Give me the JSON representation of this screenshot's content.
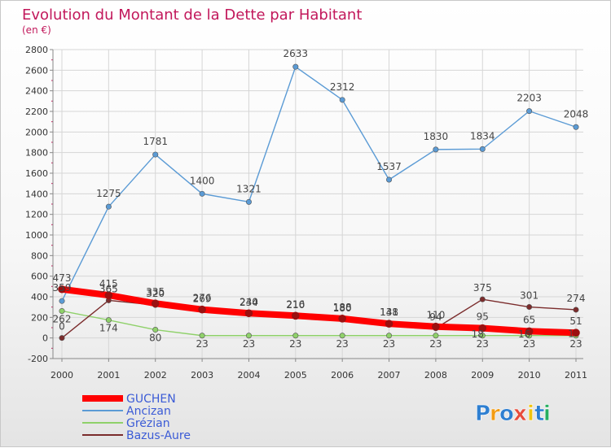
{
  "chart_data": {
    "type": "line",
    "title": "Evolution du Montant de la Dette par Habitant",
    "subtitle": "(en €)",
    "xlabel": "",
    "ylabel": "",
    "ylim": [
      -200,
      2800
    ],
    "yticks": [
      -200,
      0,
      200,
      400,
      600,
      800,
      1000,
      1200,
      1400,
      1600,
      1800,
      2000,
      2200,
      2400,
      2600,
      2800
    ],
    "categories": [
      "2000",
      "2001",
      "2002",
      "2003",
      "2004",
      "2005",
      "2006",
      "2007",
      "2008",
      "2009",
      "2010",
      "2011"
    ],
    "series": [
      {
        "name": "GUCHEN",
        "color": "#ff0000",
        "values": [
          473,
          415,
          335,
          276,
          240,
          216,
          188,
          138,
          110,
          95,
          65,
          51
        ],
        "labels": [
          "473",
          "415",
          "335",
          "276",
          "240",
          "216",
          "188",
          "138",
          "110",
          "95",
          "65",
          "51"
        ]
      },
      {
        "name": "Ancizan",
        "color": "#5b9bd5",
        "values": [
          359,
          1275,
          1781,
          1400,
          1321,
          2633,
          2312,
          1537,
          1830,
          1834,
          2203,
          2048
        ],
        "labels": [
          "359",
          "1275",
          "1781",
          "1400",
          "1321",
          "2633",
          "2312",
          "1537",
          "1830",
          "1834",
          "2203",
          "2048"
        ]
      },
      {
        "name": "Grézian",
        "color": "#8fd16a",
        "values": [
          262,
          174,
          80,
          23,
          23,
          23,
          23,
          23,
          23,
          23,
          23,
          23
        ],
        "labels": [
          "262",
          "174",
          "80",
          "23",
          "23",
          "23",
          "23",
          "23",
          "23",
          "23",
          "23",
          "23"
        ]
      },
      {
        "name": "Bazus-Aure",
        "color": "#7b2c2c",
        "values": [
          0,
          365,
          320,
          269,
          234,
          210,
          180,
          141,
          94,
          375,
          301,
          274
        ],
        "labels": [
          "0",
          "365",
          "320",
          "269",
          "234",
          "210",
          "180",
          "141",
          "94",
          "375",
          "301",
          "274"
        ]
      }
    ],
    "extra_labels": [
      "18",
      "16",
      "1"
    ],
    "legend": "bottom-left"
  },
  "brand": {
    "letters": [
      "P",
      "r",
      "o",
      "x",
      "i",
      "t",
      "i"
    ],
    "colors": [
      "#2e7fd1",
      "#f39c12",
      "#2e7fd1",
      "#e74c3c",
      "#f1c40f",
      "#2e7fd1",
      "#27ae60"
    ]
  }
}
